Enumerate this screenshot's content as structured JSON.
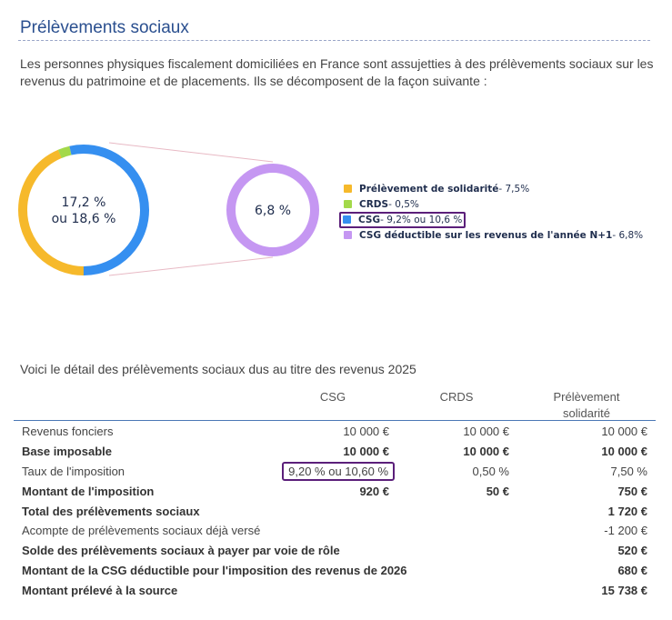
{
  "title": "Prélèvements sociaux",
  "intro": "Les personnes physiques fiscalement domiciliées en France sont assujetties à des prélèvements sociaux sur les revenus du patrimoine et de placements.  Ils se décomposent de la façon suivante :",
  "chart_data": {
    "type": "pie",
    "main_donut": {
      "center_line1": "17,2 %",
      "center_line2": "ou 18,6 %",
      "segments": [
        {
          "name": "Prélèvement de solidarité",
          "value": 7.5,
          "color": "#f6b92b"
        },
        {
          "name": "CRDS",
          "value": 0.5,
          "color": "#a3d94a"
        },
        {
          "name": "CSG",
          "value": 9.2,
          "color": "#358ff0"
        }
      ]
    },
    "detail_donut": {
      "center": "6,8 %",
      "value": 6.8,
      "color": "#c597f2"
    },
    "legend": [
      {
        "label": "Prélèvement de solidarité",
        "value": " - 7,5%",
        "color": "#f6b92b"
      },
      {
        "label": "CRDS",
        "value": " - 0,5%",
        "color": "#a3d94a"
      },
      {
        "label": "CSG",
        "value": " - 9,2% ou 10,6 %",
        "color": "#358ff0"
      },
      {
        "label": "CSG déductible sur les revenus de l'année N+1",
        "value": " - 6,8%",
        "color": "#c597f2"
      }
    ]
  },
  "detail_title": "Voici le détail des prélèvements sociaux dus au titre des revenus 2025",
  "table": {
    "headers": [
      "CSG",
      "CRDS",
      "Prélèvement",
      "solidarité"
    ],
    "rows": [
      {
        "label": "Revenus fonciers",
        "c1": "10 000 €",
        "c2": "10 000 €",
        "c3": "10 000 €"
      },
      {
        "label": "Base imposable",
        "c1": "10 000 €",
        "c2": "10 000 €",
        "c3": "10 000 €"
      },
      {
        "label": "Taux de l'imposition",
        "c1": "9,20 % ou 10,60 %",
        "c2": "0,50 %",
        "c3": "7,50 %"
      },
      {
        "label": "Montant de l'imposition",
        "c1": "920 €",
        "c2": "50 €",
        "c3": "750 €"
      },
      {
        "label": "Total des prélèvements sociaux",
        "c3": "1 720 €"
      },
      {
        "label": "Acompte de prélèvements sociaux déjà versé",
        "c3": "-1 200 €"
      },
      {
        "label": "Solde des prélèvements sociaux à payer par voie de rôle",
        "c3": "520 €"
      },
      {
        "label": "Montant de la CSG déductible pour l'imposition des revenus de 2026",
        "c3": "680 €"
      },
      {
        "label": "Montant prélevé à la source",
        "c3": "15 738 €"
      }
    ]
  }
}
